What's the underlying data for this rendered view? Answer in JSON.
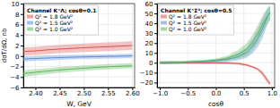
{
  "chart_data": [
    {
      "type": "area",
      "title": "Channel K⁺Λ; cosθ=0.1",
      "xlabel": "W, GeV",
      "ylabel": "dσT/dΩ, nb",
      "xlim": [
        2.375,
        2.605
      ],
      "ylim": [
        -6,
        10
      ],
      "xticks": [
        {
          "value": 2.4,
          "label": "2.40"
        },
        2.45,
        {
          "value": 2.5,
          "label": "2.50"
        },
        2.55,
        {
          "value": 2.6,
          "label": "2.60"
        }
      ],
      "yticks": [
        {
          "value": -6,
          "label": "−6"
        },
        {
          "value": -4,
          "label": "−4"
        },
        {
          "value": -2,
          "label": "−2"
        },
        0,
        2,
        4,
        6,
        8,
        10
      ],
      "grid": true,
      "legend": "upper left",
      "x": [
        2.375,
        2.4,
        2.425,
        2.45,
        2.475,
        2.5,
        2.525,
        2.55,
        2.575,
        2.6
      ],
      "series": [
        {
          "name": "Q² = 1.8 GeV²",
          "color": "#d9534f",
          "values": [
            0.85,
            0.975,
            1.175,
            1.325,
            1.45,
            1.575,
            1.675,
            1.775,
            1.875,
            2.0
          ],
          "lo": [
            0.1,
            0.2,
            0.4,
            0.55,
            0.65,
            0.75,
            0.85,
            0.95,
            1.05,
            1.15
          ],
          "hi": [
            1.6,
            1.75,
            1.95,
            2.1,
            2.25,
            2.4,
            2.5,
            2.6,
            2.7,
            2.85
          ]
        },
        {
          "name": "Q² = 1.5 GeV²",
          "color": "#5b8dd9",
          "values": [
            -0.575,
            -0.475,
            -0.375,
            -0.3,
            -0.225,
            -0.175,
            -0.125,
            -0.075,
            -0.025,
            0.025
          ],
          "lo": [
            -1.05,
            -0.95,
            -0.85,
            -0.75,
            -0.65,
            -0.6,
            -0.55,
            -0.5,
            -0.45,
            -0.4
          ],
          "hi": [
            -0.1,
            0.0,
            0.1,
            0.15,
            0.2,
            0.25,
            0.3,
            0.35,
            0.4,
            0.45
          ]
        },
        {
          "name": "Q² = 1.0 GeV²",
          "color": "#5cb85c",
          "values": [
            -3.35,
            -3.1,
            -2.875,
            -2.65,
            -2.475,
            -2.325,
            -2.175,
            -2.05,
            -1.95,
            -1.85
          ],
          "lo": [
            -4.0,
            -3.7,
            -3.45,
            -3.2,
            -3.0,
            -2.85,
            -2.7,
            -2.55,
            -2.45,
            -2.35
          ],
          "hi": [
            -2.7,
            -2.5,
            -2.3,
            -2.1,
            -1.95,
            -1.8,
            -1.65,
            -1.55,
            -1.45,
            -1.35
          ]
        }
      ]
    },
    {
      "type": "area",
      "title": "Channel K⁺Σ⁰; cosθ=0.5",
      "xlabel": "cosθ",
      "xlim": [
        -1.05,
        1.05
      ],
      "ylim": [
        -25,
        60
      ],
      "xticks": [
        {
          "value": -1.0,
          "label": "−1.0"
        },
        {
          "value": -0.5,
          "label": "−0.5"
        },
        {
          "value": 0.0,
          "label": "0.0"
        },
        0.5,
        {
          "value": 1.0,
          "label": "1.0"
        }
      ],
      "yticks": [
        {
          "value": -20,
          "label": "−20"
        },
        {
          "value": -10,
          "label": "−10"
        },
        0,
        10,
        20,
        30,
        40,
        50,
        60
      ],
      "grid": true,
      "legend": "upper left",
      "x": [
        -1.0,
        -0.8,
        -0.6,
        -0.4,
        -0.2,
        0.0,
        0.2,
        0.4,
        0.55,
        0.65,
        0.75,
        0.82,
        0.88,
        0.93,
        0.97
      ],
      "series": [
        {
          "name": "Q² = 1.8 GeV²",
          "color": "#d9534f",
          "values": [
            0,
            0,
            0,
            0,
            0,
            0,
            -0.25,
            -0.75,
            -2.25,
            -4,
            -6.5,
            -10,
            -14.5,
            -18.5,
            -21.25
          ],
          "lo": [
            -1.5,
            -1.5,
            -1.5,
            -1.5,
            -1.5,
            -1.5,
            -1.5,
            -2.0,
            -3.5,
            -5.0,
            -8.0,
            -12.0,
            -17.0,
            -21.0,
            -23.5
          ],
          "hi": [
            1.5,
            1.5,
            1.5,
            1.5,
            1.5,
            1.5,
            1.0,
            0.5,
            -1.0,
            -3.0,
            -5.0,
            -8.0,
            -12.0,
            -16.0,
            -19.0
          ]
        },
        {
          "name": "Q² = 1.5 GeV²",
          "color": "#5b8dd9",
          "values": [
            0,
            0.25,
            0.5,
            1,
            1.25,
            2,
            3.25,
            6.25,
            10.5,
            16.5,
            25,
            33,
            41,
            48,
            51.5
          ],
          "lo": [
            -1.5,
            -1.0,
            -0.5,
            0.0,
            0.0,
            0.5,
            1.0,
            2.5,
            5.0,
            9.0,
            16.0,
            23.0,
            32.0,
            40.0,
            45.0
          ],
          "hi": [
            1.5,
            1.5,
            1.5,
            2.0,
            2.5,
            3.5,
            5.5,
            10.0,
            16.0,
            24.0,
            34.0,
            43.0,
            50.0,
            56.0,
            58.0
          ]
        },
        {
          "name": "Q² = 1.0 GeV²",
          "color": "#5cb85c",
          "values": [
            0,
            0.5,
            0.75,
            1.25,
            1.75,
            2.75,
            4.5,
            8.5,
            13.5,
            20,
            29,
            37,
            43.5,
            48,
            50.5
          ],
          "lo": [
            -1.5,
            -1.0,
            -0.5,
            0.0,
            0.5,
            1.0,
            2.0,
            4.0,
            7.0,
            12.0,
            20.0,
            28.0,
            35.0,
            40.0,
            43.0
          ],
          "hi": [
            1.5,
            2.0,
            2.0,
            2.5,
            3.0,
            4.5,
            7.0,
            13.0,
            20.0,
            28.0,
            38.0,
            46.0,
            52.0,
            56.0,
            58.0
          ]
        }
      ]
    }
  ]
}
